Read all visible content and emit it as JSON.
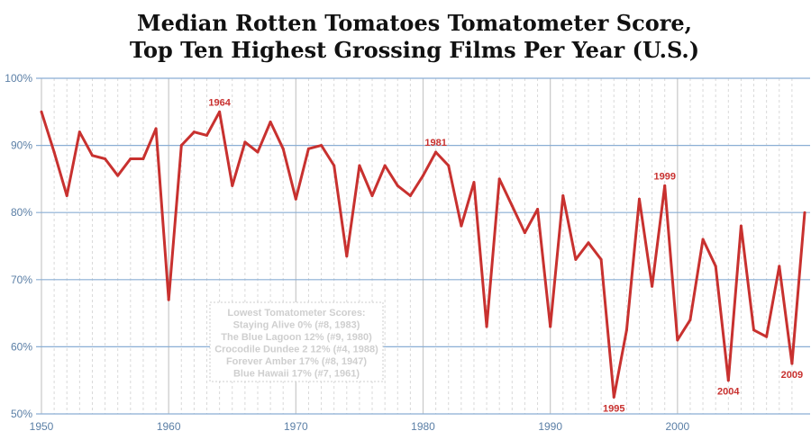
{
  "chart_data": {
    "type": "line",
    "title_lines": [
      "Median Rotten Tomatoes Tomatometer Score,",
      "Top Ten Highest Grossing Films Per Year (U.S.)"
    ],
    "xlim": [
      1950,
      2010
    ],
    "ylim": [
      50,
      100
    ],
    "x_ticks": [
      {
        "value": 1950,
        "label": "1950"
      },
      {
        "value": 1960,
        "label": "1960"
      },
      {
        "value": 1970,
        "label": "1970"
      },
      {
        "value": 1980,
        "label": "1980"
      },
      {
        "value": 1990,
        "label": "1990"
      },
      {
        "value": 2000,
        "label": "2000"
      }
    ],
    "y_ticks": [
      {
        "value": 50,
        "label": "50%"
      },
      {
        "value": 60,
        "label": "60%"
      },
      {
        "value": 70,
        "label": "70%"
      },
      {
        "value": 80,
        "label": "80%"
      },
      {
        "value": 90,
        "label": "90%"
      },
      {
        "value": 100,
        "label": "100%"
      }
    ],
    "grid": true,
    "line_color": "#c8312f",
    "grid_color": "#8aaed4",
    "minor_grid_color": "#d9d9d9",
    "series": [
      {
        "x": [
          1950,
          1951,
          1952,
          1953,
          1954,
          1955,
          1956,
          1957,
          1958,
          1959,
          1960,
          1961,
          1962,
          1963,
          1964,
          1965,
          1966,
          1967,
          1968,
          1969,
          1970,
          1971,
          1972,
          1973,
          1974,
          1975,
          1976,
          1977,
          1978,
          1979,
          1980,
          1981,
          1982,
          1983,
          1984,
          1985,
          1986,
          1987,
          1988,
          1989,
          1990,
          1991,
          1992,
          1993,
          1994,
          1995,
          1996,
          1997,
          1998,
          1999,
          2000,
          2001,
          2002,
          2003,
          2004,
          2005,
          2006,
          2007,
          2008,
          2009,
          2010
        ],
        "y": [
          95,
          89,
          82.5,
          92,
          88.5,
          88,
          85.5,
          88,
          88,
          92.5,
          67,
          90,
          92,
          91.5,
          95,
          84,
          90.5,
          89,
          93.5,
          89.5,
          82,
          89.5,
          90,
          87,
          73.5,
          87,
          82.5,
          87,
          84,
          82.5,
          85.5,
          89,
          87,
          78,
          84.5,
          63,
          85,
          81,
          77,
          80.5,
          63,
          82.5,
          73,
          75.5,
          73,
          52.5,
          62.5,
          82,
          69,
          84,
          61,
          64,
          76,
          72,
          55,
          78,
          62.5,
          61.5,
          72,
          57.5,
          80
        ]
      }
    ],
    "annotations": [
      {
        "x": 1964,
        "y": 95,
        "label": "1964",
        "position": "above"
      },
      {
        "x": 1981,
        "y": 89,
        "label": "1981",
        "position": "above"
      },
      {
        "x": 1995,
        "y": 52.5,
        "label": "1995",
        "position": "below"
      },
      {
        "x": 1999,
        "y": 84,
        "label": "1999",
        "position": "above"
      },
      {
        "x": 2004,
        "y": 55,
        "label": "2004",
        "position": "below"
      },
      {
        "x": 2009,
        "y": 57.5,
        "label": "2009",
        "position": "below"
      }
    ],
    "lowest_box": {
      "lines": [
        "Lowest Tomatometer Scores:",
        "Staying Alive 0% (#8, 1983)",
        "The Blue Lagoon 12% (#9, 1980)",
        "Crocodile Dundee 2 12% (#4, 1988)",
        "Forever Amber 17% (#8, 1947)",
        "Blue Hawaii 17% (#7, 1961)"
      ]
    }
  }
}
